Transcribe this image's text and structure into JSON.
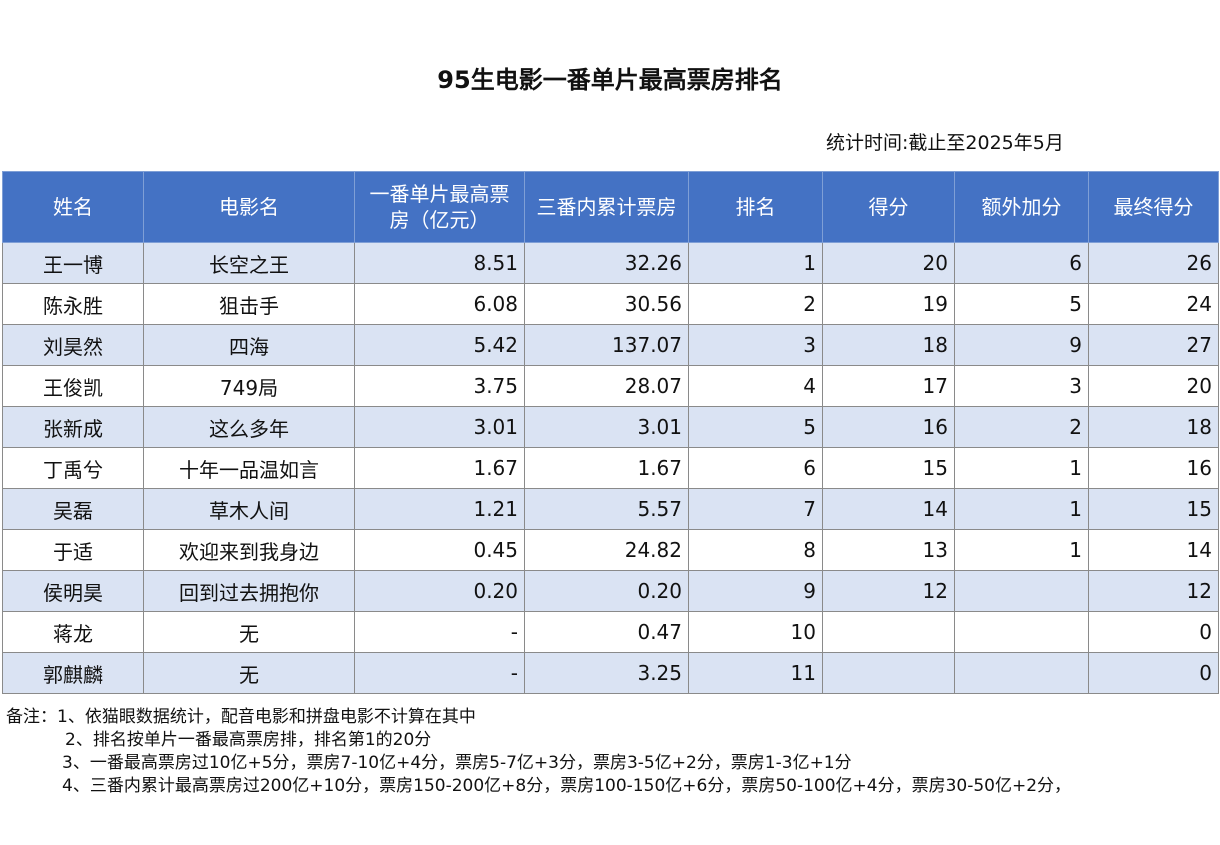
{
  "title": "95生电影一番单片最高票房排名",
  "stat_time": "统计时间:截止至2025年5月",
  "table": {
    "headers": [
      "姓名",
      "电影名",
      "一番单片最高票房（亿元）",
      "三番内累计票房",
      "排名",
      "得分",
      "额外加分",
      "最终得分"
    ],
    "rows": [
      [
        "王一博",
        "长空之王",
        "8.51",
        "32.26",
        "1",
        "20",
        "6",
        "26"
      ],
      [
        "陈永胜",
        "狙击手",
        "6.08",
        "30.56",
        "2",
        "19",
        "5",
        "24"
      ],
      [
        "刘昊然",
        "四海",
        "5.42",
        "137.07",
        "3",
        "18",
        "9",
        "27"
      ],
      [
        "王俊凯",
        "749局",
        "3.75",
        "28.07",
        "4",
        "17",
        "3",
        "20"
      ],
      [
        "张新成",
        "这么多年",
        "3.01",
        "3.01",
        "5",
        "16",
        "2",
        "18"
      ],
      [
        "丁禹兮",
        "十年一品温如言",
        "1.67",
        "1.67",
        "6",
        "15",
        "1",
        "16"
      ],
      [
        "吴磊",
        "草木人间",
        "1.21",
        "5.57",
        "7",
        "14",
        "1",
        "15"
      ],
      [
        "于适",
        "欢迎来到我身边",
        "0.45",
        "24.82",
        "8",
        "13",
        "1",
        "14"
      ],
      [
        "侯明昊",
        "回到过去拥抱你",
        "0.20",
        "0.20",
        "9",
        "12",
        "",
        "12"
      ],
      [
        "蒋龙",
        "无",
        "-",
        "0.47",
        "10",
        "",
        "",
        "0"
      ],
      [
        "郭麒麟",
        "无",
        "-",
        "3.25",
        "11",
        "",
        "",
        "0"
      ]
    ]
  },
  "notes": [
    "备注：1、依猫眼数据统计，配音电影和拼盘电影不计算在其中",
    "2、排名按单片一番最高票房排，排名第1的20分",
    "3、一番最高票房过10亿+5分，票房7-10亿+4分，票房5-7亿+3分，票房3-5亿+2分，票房1-3亿+1分",
    "4、三番内累计最高票房过200亿+10分，票房150-200亿+8分，票房100-150亿+6分，票房50-100亿+4分，票房30-50亿+2分，"
  ]
}
